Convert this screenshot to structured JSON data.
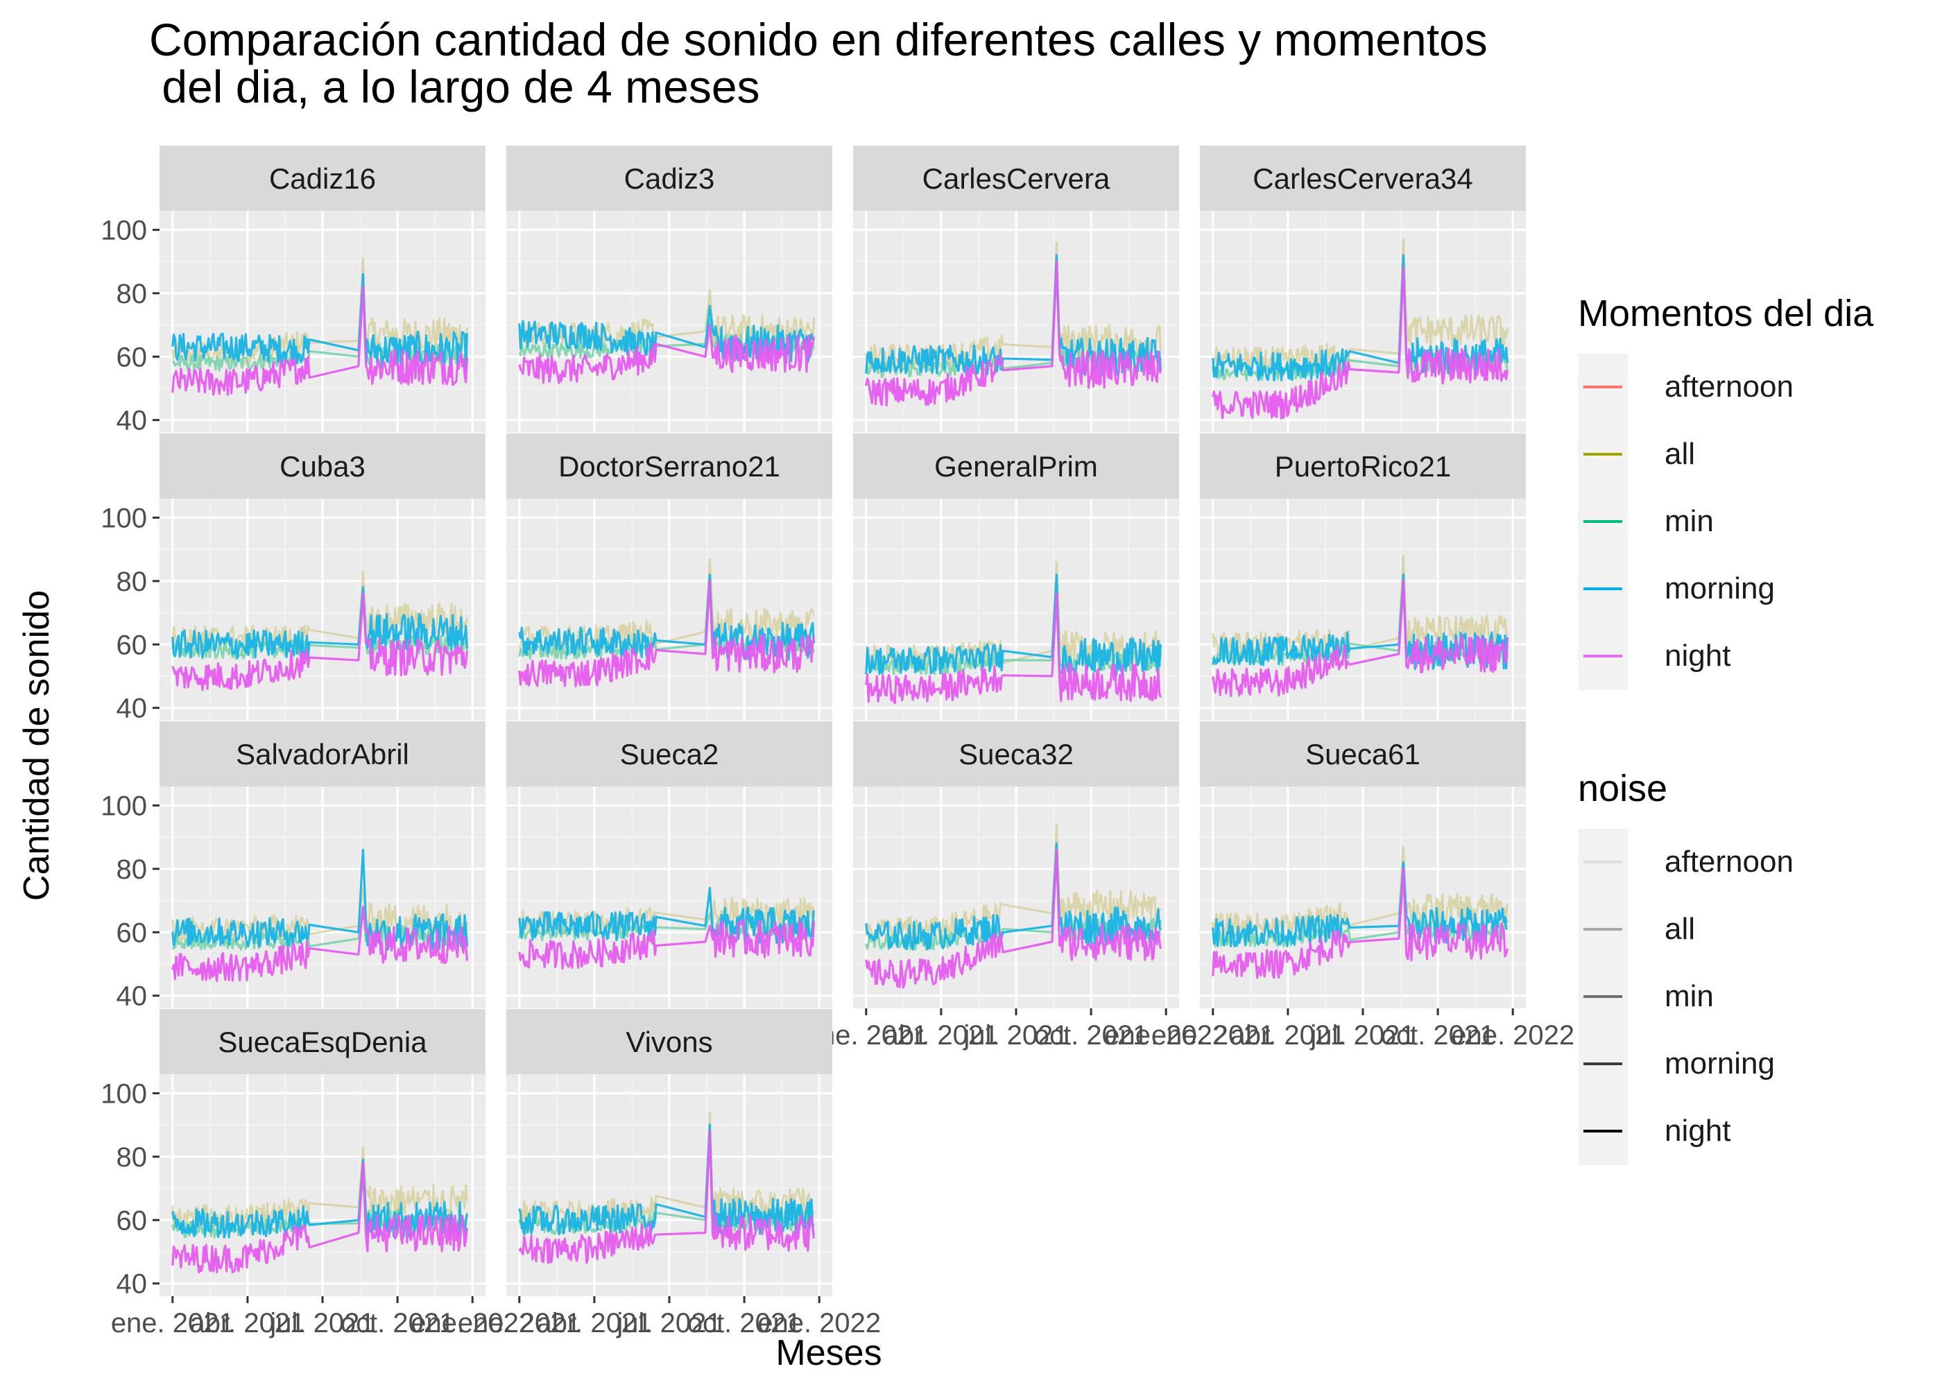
{
  "chart_data": {
    "type": "line",
    "title": "Comparación cantidad de sonido en diferentes calles y momentos\n del dia, a lo largo de 4 meses",
    "xlabel": "Meses",
    "ylabel": "Cantidad de sonido",
    "ylim": [
      40,
      100
    ],
    "yticks": [
      40,
      60,
      80,
      100
    ],
    "xticks": [
      "ene. 2021",
      "abr. 2021",
      "jul. 2021",
      "oct. 2021",
      "ene. 2022"
    ],
    "xtick_labels_shown": [
      "ene. 2021",
      "abr. 2021",
      "jul. 2021",
      "oct. 2021",
      "ene. 2022"
    ],
    "grid": true,
    "facet_columns": 4,
    "legend_position": "right",
    "legends": [
      {
        "title": "Momentos del dia",
        "entries": [
          {
            "label": "afternoon",
            "color": "#F8766D"
          },
          {
            "label": "all",
            "color": "#A3A500"
          },
          {
            "label": "min",
            "color": "#00BF7D"
          },
          {
            "label": "morning",
            "color": "#00B0F6"
          },
          {
            "label": "night",
            "color": "#E76BF3"
          }
        ]
      },
      {
        "title": "noise",
        "entries": [
          {
            "label": "afternoon",
            "color": "#DCDCDC"
          },
          {
            "label": "all",
            "color": "#A9A9A9"
          },
          {
            "label": "min",
            "color": "#6E6E6E"
          },
          {
            "label": "morning",
            "color": "#3A3A3A"
          },
          {
            "label": "night",
            "color": "#000000"
          }
        ]
      }
    ],
    "series_levels": {
      "all": {
        "name": "all",
        "color": "#D4CC96"
      },
      "min": {
        "name": "min",
        "color": "#7FD4B0"
      },
      "morning": {
        "name": "morning",
        "color": "#19B4E6"
      },
      "night": {
        "name": "night",
        "color": "#E65CF0"
      }
    },
    "panels": [
      {
        "name": "Cadiz16",
        "all": [
          61,
          65,
          67,
          91
        ],
        "min": [
          58,
          60,
          61,
          84
        ],
        "morning": [
          63,
          62,
          62,
          86
        ],
        "night": [
          52,
          57,
          57,
          82
        ]
      },
      {
        "name": "Cadiz3",
        "all": [
          67,
          68,
          68,
          81
        ],
        "min": [
          62,
          64,
          64,
          72
        ],
        "morning": [
          67,
          63,
          64,
          76
        ],
        "night": [
          56,
          60,
          61,
          70
        ]
      },
      {
        "name": "CarlesCervera",
        "all": [
          60,
          63,
          65,
          96
        ],
        "min": [
          56,
          58,
          59,
          88
        ],
        "morning": [
          59,
          59,
          60,
          92
        ],
        "night": [
          49,
          57,
          56,
          90
        ]
      },
      {
        "name": "CarlesCervera34",
        "all": [
          59,
          61,
          68,
          97
        ],
        "min": [
          55,
          57,
          58,
          88
        ],
        "morning": [
          57,
          58,
          60,
          92
        ],
        "night": [
          45,
          55,
          57,
          88
        ]
      },
      {
        "name": "Cuba3",
        "all": [
          62,
          62,
          68,
          83
        ],
        "min": [
          58,
          59,
          60,
          74
        ],
        "morning": [
          60,
          60,
          64,
          78
        ],
        "night": [
          50,
          55,
          56,
          76
        ]
      },
      {
        "name": "DoctorSerrano21",
        "all": [
          62,
          64,
          66,
          87
        ],
        "min": [
          58,
          60,
          60,
          78
        ],
        "morning": [
          61,
          60,
          61,
          82
        ],
        "night": [
          51,
          57,
          57,
          80
        ]
      },
      {
        "name": "GeneralPrim",
        "all": [
          56,
          58,
          59,
          86
        ],
        "min": [
          53,
          55,
          55,
          78
        ],
        "morning": [
          55,
          56,
          56,
          82
        ],
        "night": [
          46,
          50,
          48,
          76
        ]
      },
      {
        "name": "PuertoRico21",
        "all": [
          60,
          62,
          64,
          88
        ],
        "min": [
          56,
          58,
          58,
          78
        ],
        "morning": [
          58,
          60,
          58,
          82
        ],
        "night": [
          48,
          57,
          57,
          80
        ]
      },
      {
        "name": "SalvadorAbril",
        "all": [
          61,
          62,
          64,
          74
        ],
        "min": [
          57,
          58,
          59,
          68
        ],
        "morning": [
          60,
          60,
          60,
          86
        ],
        "night": [
          49,
          53,
          56,
          68
        ]
      },
      {
        "name": "Sueca2",
        "all": [
          63,
          64,
          66,
          72
        ],
        "min": [
          60,
          61,
          61,
          66
        ],
        "morning": [
          62,
          62,
          62,
          74
        ],
        "night": [
          53,
          57,
          58,
          62
        ]
      },
      {
        "name": "Sueca32",
        "all": [
          61,
          66,
          68,
          94
        ],
        "min": [
          57,
          60,
          61,
          84
        ],
        "morning": [
          59,
          62,
          62,
          88
        ],
        "night": [
          47,
          57,
          57,
          86
        ]
      },
      {
        "name": "Sueca61",
        "all": [
          62,
          66,
          67,
          87
        ],
        "min": [
          58,
          60,
          61,
          78
        ],
        "morning": [
          60,
          62,
          62,
          82
        ],
        "night": [
          50,
          58,
          57,
          80
        ]
      },
      {
        "name": "SuecaEsqDenia",
        "all": [
          61,
          64,
          66,
          83
        ],
        "min": [
          57,
          59,
          60,
          74
        ],
        "morning": [
          59,
          60,
          60,
          79
        ],
        "night": [
          48,
          56,
          56,
          78
        ]
      },
      {
        "name": "Vivons",
        "all": [
          62,
          64,
          65,
          94
        ],
        "min": [
          58,
          60,
          60,
          86
        ],
        "morning": [
          60,
          61,
          61,
          90
        ],
        "night": [
          51,
          56,
          56,
          88
        ]
      }
    ]
  }
}
